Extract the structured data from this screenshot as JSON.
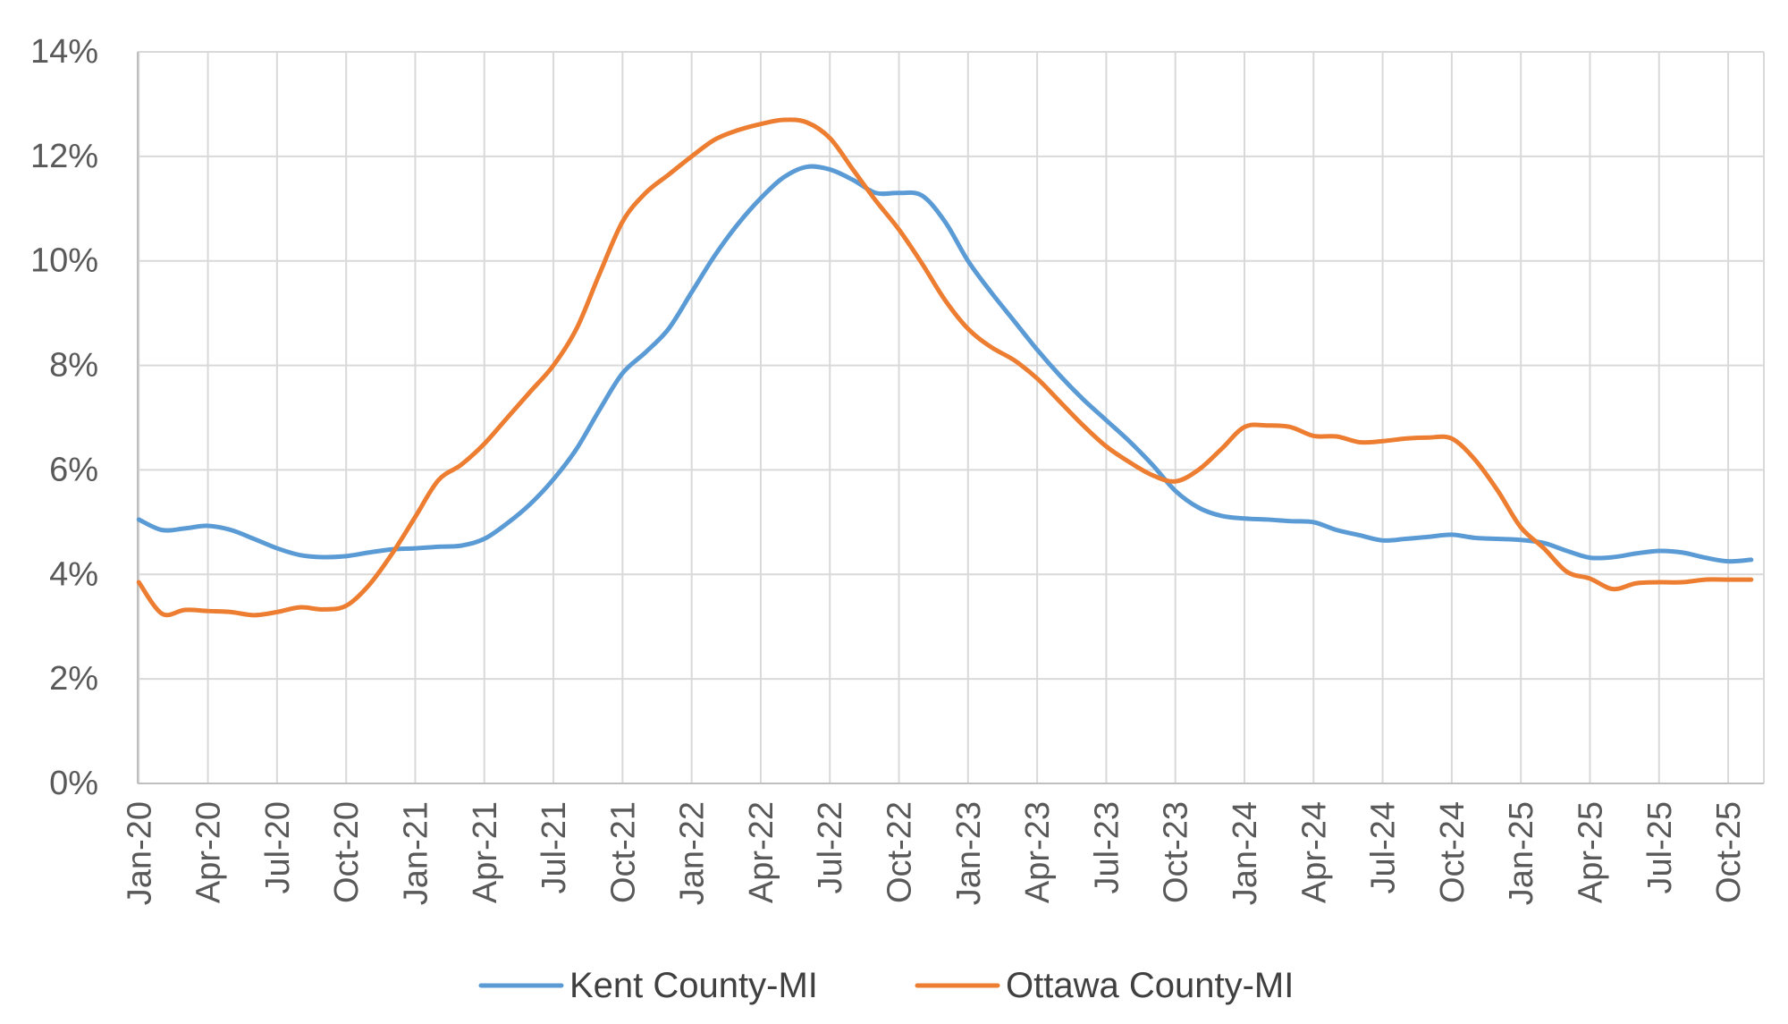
{
  "chart_data": {
    "type": "line",
    "title": "",
    "xlabel": "",
    "ylabel": "",
    "ylim": [
      0,
      0.14
    ],
    "y_ticks": [
      0,
      0.02,
      0.04,
      0.06,
      0.08,
      0.1,
      0.12,
      0.14
    ],
    "y_tick_labels": [
      "0%",
      "2%",
      "4%",
      "6%",
      "8%",
      "10%",
      "12%",
      "14%"
    ],
    "x_tick_labels": [
      "Jan-20",
      "Apr-20",
      "Jul-20",
      "Oct-20",
      "Jan-21",
      "Apr-21",
      "Jul-21",
      "Oct-21",
      "Jan-22",
      "Apr-22",
      "Jul-22",
      "Oct-22",
      "Jan-23",
      "Apr-23",
      "Jul-23",
      "Oct-23",
      "Jan-24",
      "Apr-24",
      "Jul-24",
      "Oct-24",
      "Jan-25",
      "Apr-25",
      "Jul-25",
      "Oct-25"
    ],
    "grid": true,
    "legend_position": "bottom",
    "x": [
      "Jan-20",
      "Feb-20",
      "Mar-20",
      "Apr-20",
      "May-20",
      "Jun-20",
      "Jul-20",
      "Aug-20",
      "Sep-20",
      "Oct-20",
      "Nov-20",
      "Dec-20",
      "Jan-21",
      "Feb-21",
      "Mar-21",
      "Apr-21",
      "May-21",
      "Jun-21",
      "Jul-21",
      "Aug-21",
      "Sep-21",
      "Oct-21",
      "Nov-21",
      "Dec-21",
      "Jan-22",
      "Feb-22",
      "Mar-22",
      "Apr-22",
      "May-22",
      "Jun-22",
      "Jul-22",
      "Aug-22",
      "Sep-22",
      "Oct-22",
      "Nov-22",
      "Dec-22",
      "Jan-23",
      "Feb-23",
      "Mar-23",
      "Apr-23",
      "May-23",
      "Jun-23",
      "Jul-23",
      "Aug-23",
      "Sep-23",
      "Oct-23",
      "Nov-23",
      "Dec-23",
      "Jan-24",
      "Feb-24",
      "Mar-24",
      "Apr-24",
      "May-24",
      "Jun-24",
      "Jul-24",
      "Aug-24",
      "Sep-24",
      "Oct-24",
      "Nov-24",
      "Dec-24",
      "Jan-25",
      "Feb-25",
      "Mar-25",
      "Apr-25",
      "May-25",
      "Jun-25",
      "Jul-25",
      "Aug-25",
      "Sep-25",
      "Oct-25",
      "Nov-25"
    ],
    "series": [
      {
        "name": "Kent County-MI",
        "color": "#5B9BD5",
        "values": [
          0.0505,
          0.0485,
          0.0488,
          0.0493,
          0.0485,
          0.0468,
          0.045,
          0.0437,
          0.0433,
          0.0435,
          0.0442,
          0.0448,
          0.045,
          0.0453,
          0.0455,
          0.0468,
          0.0498,
          0.0535,
          0.0582,
          0.064,
          0.0715,
          0.0785,
          0.0825,
          0.087,
          0.094,
          0.101,
          0.107,
          0.112,
          0.116,
          0.118,
          0.1175,
          0.1155,
          0.113,
          0.113,
          0.1125,
          0.1075,
          0.1,
          0.094,
          0.0885,
          0.083,
          0.078,
          0.0735,
          0.0695,
          0.0655,
          0.061,
          0.056,
          0.0528,
          0.0512,
          0.0507,
          0.0505,
          0.0502,
          0.05,
          0.0485,
          0.0475,
          0.0465,
          0.0468,
          0.0472,
          0.0476,
          0.047,
          0.0468,
          0.0466,
          0.046,
          0.0445,
          0.0432,
          0.0433,
          0.044,
          0.0445,
          0.0442,
          0.0432,
          0.0425,
          0.0428
        ]
      },
      {
        "name": "Ottawa County-MI",
        "color": "#ED7D31",
        "values": [
          0.0385,
          0.0325,
          0.0332,
          0.033,
          0.0328,
          0.0322,
          0.0328,
          0.0337,
          0.0333,
          0.034,
          0.038,
          0.044,
          0.051,
          0.058,
          0.061,
          0.065,
          0.07,
          0.075,
          0.08,
          0.087,
          0.0975,
          0.1075,
          0.113,
          0.1165,
          0.12,
          0.1232,
          0.125,
          0.1262,
          0.127,
          0.1265,
          0.1235,
          0.1175,
          0.1115,
          0.106,
          0.0995,
          0.0925,
          0.087,
          0.0835,
          0.081,
          0.0775,
          0.073,
          0.0685,
          0.0645,
          0.0615,
          0.059,
          0.0578,
          0.06,
          0.064,
          0.0682,
          0.0685,
          0.0682,
          0.0665,
          0.0664,
          0.0653,
          0.0655,
          0.066,
          0.0662,
          0.066,
          0.062,
          0.056,
          0.049,
          0.045,
          0.0405,
          0.0392,
          0.0372,
          0.0383,
          0.0385,
          0.0385,
          0.039,
          0.039,
          0.039
        ]
      }
    ]
  }
}
